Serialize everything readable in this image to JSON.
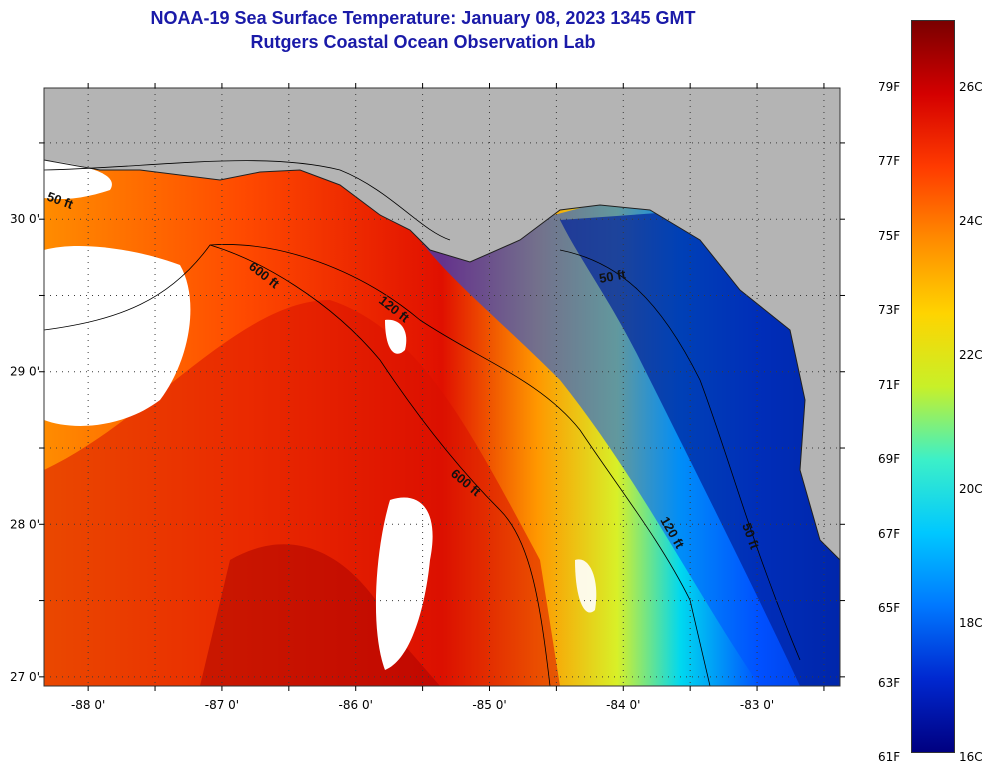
{
  "header": {
    "title": "NOAA-19 Sea Surface Temperature:  January 08, 2023 1345 GMT",
    "subtitle": "Rutgers Coastal Ocean Observation Lab"
  },
  "axes": {
    "lon_ticks": [
      {
        "value": -88,
        "label": "-88 0'"
      },
      {
        "value": -87,
        "label": "-87 0'"
      },
      {
        "value": -86,
        "label": "-86 0'"
      },
      {
        "value": -85,
        "label": "-85 0'"
      },
      {
        "value": -84,
        "label": "-84 0'"
      },
      {
        "value": -83,
        "label": "-83 0'"
      }
    ],
    "lat_ticks": [
      {
        "value": 30,
        "label": "30 0'"
      },
      {
        "value": 29,
        "label": "29 0'"
      },
      {
        "value": 28,
        "label": "28 0'"
      },
      {
        "value": 27,
        "label": "27 0'"
      }
    ],
    "lon_range": [
      -88.33,
      -82.38
    ],
    "lat_range": [
      26.94,
      30.86
    ]
  },
  "contours": [
    {
      "name": "50 ft",
      "label": "50 ft"
    },
    {
      "name": "120 ft",
      "label": "120 ft"
    },
    {
      "name": "600 ft",
      "label": "600 ft"
    }
  ],
  "colorbar": {
    "fahrenheit": [
      "79F",
      "77F",
      "75F",
      "73F",
      "71F",
      "69F",
      "67F",
      "65F",
      "63F",
      "61F"
    ],
    "celsius": [
      "26C",
      "24C",
      "22C",
      "20C",
      "18C",
      "16C"
    ],
    "colors": [
      "#7a0000",
      "#d40000",
      "#ff3b00",
      "#ff8c00",
      "#ffd400",
      "#c8f028",
      "#3cf0c8",
      "#00c8ff",
      "#0078ff",
      "#0028d0",
      "#000080"
    ]
  },
  "map_colors": {
    "land": "#b4b4b4",
    "cloud": "#ffffff"
  }
}
